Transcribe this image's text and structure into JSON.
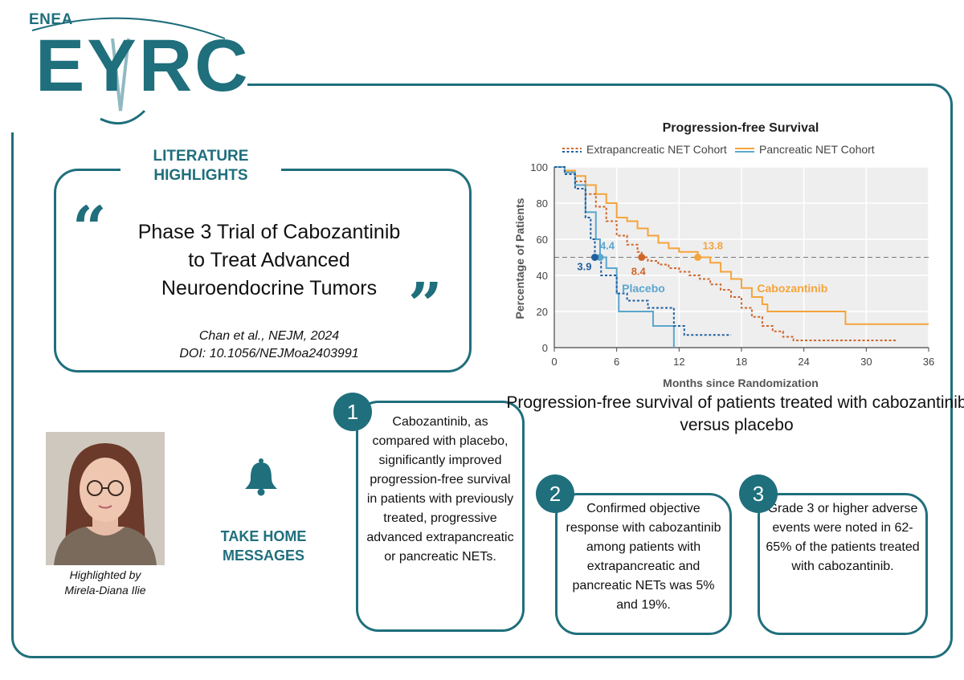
{
  "brand": {
    "org": "ENEA",
    "logo_text": "EYRC",
    "color": "#1f6f7c"
  },
  "section_label": "LITERATURE HIGHLIGHTS",
  "article": {
    "title_lines": [
      "Phase 3 Trial of Cabozantinib",
      "to Treat Advanced",
      "Neuroendocrine Tumors"
    ],
    "citation": "Chan et al., NEJM, 2024",
    "doi": "DOI: 10.1056/NEJMoa2403991"
  },
  "author": {
    "by_label": "Highlighted by",
    "name": "Mirela-Diana Ilie"
  },
  "take_home": {
    "label_lines": [
      "TAKE HOME",
      "MESSAGES"
    ],
    "icon": "bell-icon"
  },
  "messages": [
    {
      "number": "1",
      "text": "Cabozantinib, as compared with placebo, significantly improved progression-free survival in patients with previously treated, progressive advanced extrapancreatic or pancreatic NETs."
    },
    {
      "number": "2",
      "text": "Confirmed objective response with cabozantinib among patients with extrapancreatic and pancreatic NETs was 5% and 19%."
    },
    {
      "number": "3",
      "text": "Grade 3 or higher adverse events were noted in 62-65% of the patients treated with cabozantinib."
    }
  ],
  "chart_caption": "Progression-free survival of patients treated with cabozantinib versus placebo",
  "chart_data": {
    "type": "line",
    "subtype": "kaplan-meier step",
    "title": "Progression-free Survival",
    "xlabel": "Months since Randomization",
    "ylabel": "Percentage of Patients",
    "xlim": [
      0,
      36
    ],
    "ylim": [
      0,
      100
    ],
    "xticks": [
      0,
      6,
      12,
      18,
      24,
      30,
      36
    ],
    "yticks": [
      0,
      20,
      40,
      60,
      80,
      100
    ],
    "grid": true,
    "reference_line": 50,
    "legend": [
      {
        "name": "Extrapancreatic NET Cohort",
        "style": "dashed"
      },
      {
        "name": "Pancreatic NET Cohort",
        "style": "solid"
      }
    ],
    "series": [
      {
        "name": "Cabozantinib – Pancreatic",
        "color": "#f5a43a",
        "dash": false,
        "points": [
          [
            0,
            100
          ],
          [
            1,
            98
          ],
          [
            2,
            95
          ],
          [
            3,
            90
          ],
          [
            4,
            85
          ],
          [
            5,
            80
          ],
          [
            6,
            72
          ],
          [
            7,
            70
          ],
          [
            8,
            66
          ],
          [
            9,
            62
          ],
          [
            10,
            58
          ],
          [
            11,
            55
          ],
          [
            12,
            53
          ],
          [
            13,
            53
          ],
          [
            13.8,
            50
          ],
          [
            14,
            50
          ],
          [
            15,
            47
          ],
          [
            16,
            42
          ],
          [
            17,
            38
          ],
          [
            18,
            33
          ],
          [
            19,
            28
          ],
          [
            20,
            24
          ],
          [
            20.5,
            20
          ],
          [
            28,
            20
          ],
          [
            28,
            13
          ],
          [
            36,
            13
          ]
        ]
      },
      {
        "name": "Cabozantinib – Extrapancreatic",
        "color": "#d0672a",
        "dash": true,
        "points": [
          [
            0,
            100
          ],
          [
            1,
            97
          ],
          [
            2,
            92
          ],
          [
            3,
            85
          ],
          [
            4,
            78
          ],
          [
            5,
            70
          ],
          [
            6,
            62
          ],
          [
            7,
            57
          ],
          [
            8,
            53
          ],
          [
            8.4,
            50
          ],
          [
            9,
            48
          ],
          [
            10,
            46
          ],
          [
            11,
            44
          ],
          [
            12,
            42
          ],
          [
            13,
            40
          ],
          [
            14,
            38
          ],
          [
            15,
            35
          ],
          [
            16,
            32
          ],
          [
            17,
            28
          ],
          [
            18,
            22
          ],
          [
            19,
            17
          ],
          [
            20,
            12
          ],
          [
            21,
            9
          ],
          [
            22,
            6
          ],
          [
            23,
            4
          ],
          [
            33,
            4
          ]
        ]
      },
      {
        "name": "Placebo – Pancreatic",
        "color": "#5ba6cc",
        "dash": false,
        "points": [
          [
            0,
            100
          ],
          [
            1,
            97
          ],
          [
            2,
            90
          ],
          [
            3,
            75
          ],
          [
            4,
            60
          ],
          [
            4.4,
            50
          ],
          [
            5,
            44
          ],
          [
            6,
            30
          ],
          [
            6.2,
            20
          ],
          [
            9,
            20
          ],
          [
            9.5,
            12
          ],
          [
            11.5,
            12
          ],
          [
            11.5,
            0
          ]
        ]
      },
      {
        "name": "Placebo – Extrapancreatic",
        "color": "#1f5f9e",
        "dash": true,
        "points": [
          [
            0,
            100
          ],
          [
            1,
            96
          ],
          [
            2,
            88
          ],
          [
            3,
            72
          ],
          [
            3.5,
            60
          ],
          [
            3.9,
            50
          ],
          [
            4.5,
            40
          ],
          [
            6,
            30
          ],
          [
            7,
            26
          ],
          [
            9,
            26
          ],
          [
            9,
            22
          ],
          [
            11.5,
            22
          ],
          [
            11.5,
            12
          ],
          [
            12.5,
            12
          ],
          [
            12.5,
            7
          ],
          [
            17,
            7
          ]
        ]
      }
    ],
    "annotations": [
      {
        "text": "13.8",
        "series": "Cabozantinib – Pancreatic",
        "x": 13.8,
        "y": 50,
        "color": "#f5a43a"
      },
      {
        "text": "8.4",
        "series": "Cabozantinib – Extrapancreatic",
        "x": 8.4,
        "y": 50,
        "color": "#d0672a"
      },
      {
        "text": "4.4",
        "series": "Placebo – Pancreatic",
        "x": 4.4,
        "y": 50,
        "color": "#5ba6cc"
      },
      {
        "text": "3.9",
        "series": "Placebo – Extrapancreatic",
        "x": 3.9,
        "y": 50,
        "color": "#1f5f9e"
      },
      {
        "text": "Cabozantinib",
        "x": 19.5,
        "y": 33,
        "color": "#f5a43a"
      },
      {
        "text": "Placebo",
        "x": 6.5,
        "y": 33,
        "color": "#5ba6cc"
      }
    ]
  }
}
